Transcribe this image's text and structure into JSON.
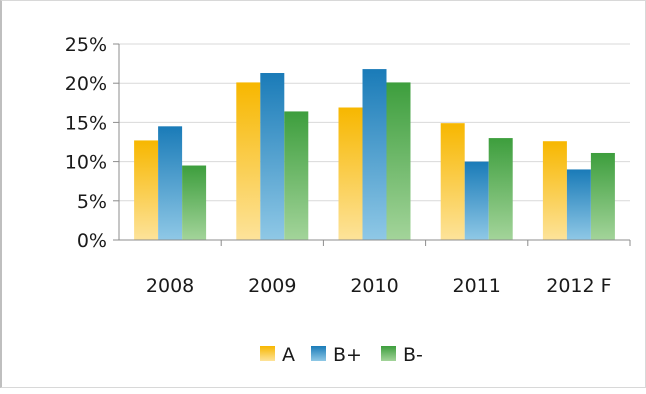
{
  "chart_data": {
    "type": "bar",
    "title": "",
    "xlabel": "",
    "ylabel": "",
    "categories": [
      "2008",
      "2009",
      "2010",
      "2011",
      "2012 F"
    ],
    "series": [
      {
        "name": "A",
        "values": [
          12.7,
          20.1,
          16.9,
          14.9,
          12.6
        ]
      },
      {
        "name": "B+",
        "values": [
          14.5,
          21.3,
          21.8,
          10.0,
          9.0
        ]
      },
      {
        "name": "B-",
        "values": [
          9.5,
          16.4,
          20.1,
          13.0,
          11.1
        ]
      }
    ],
    "ylim": [
      0,
      25
    ],
    "yticks": [
      0,
      5,
      10,
      15,
      20,
      25
    ],
    "ytick_labels": [
      "0%",
      "5%",
      "10%",
      "15%",
      "20%",
      "25%"
    ],
    "grid": true,
    "legend_position": "bottom",
    "series_colors": {
      "A": {
        "top": "#f7b700",
        "bottom": "#fde39a"
      },
      "B+": {
        "top": "#1a7bb8",
        "bottom": "#8fc8e6"
      },
      "B-": {
        "top": "#3d9e3d",
        "bottom": "#a3d49a"
      }
    },
    "gridline_color": "#d9d9d9",
    "axis_color": "#8c8c8c"
  }
}
